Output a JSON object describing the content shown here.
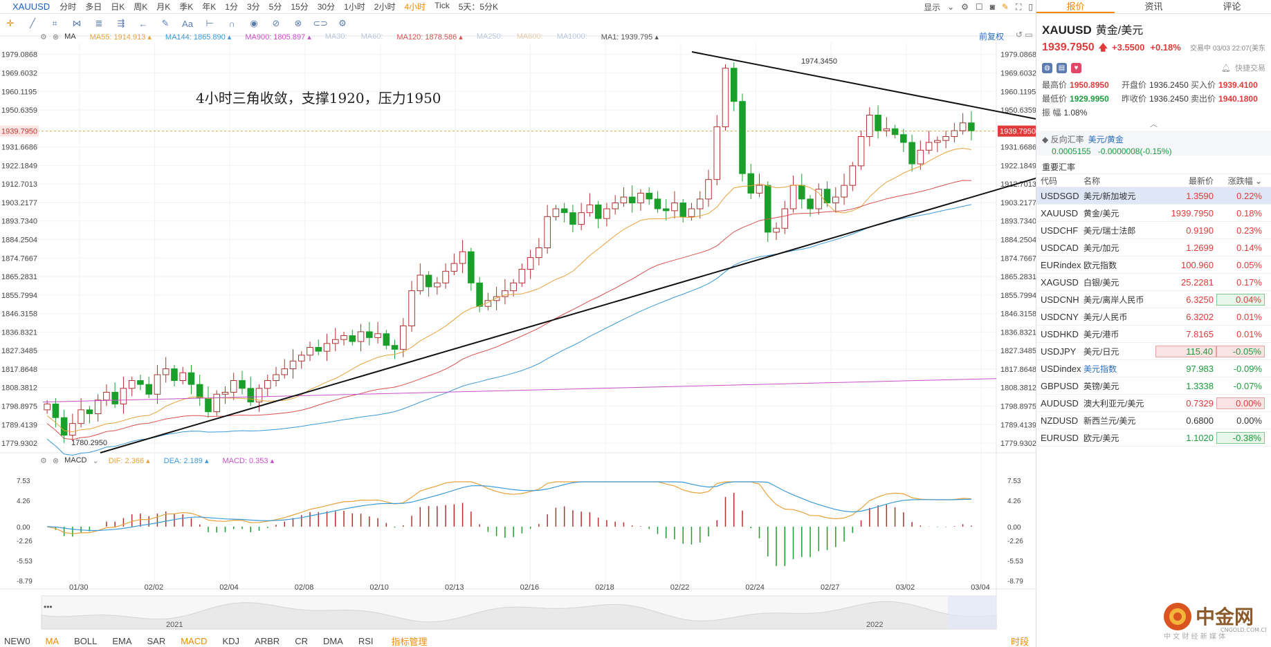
{
  "symbol": "XAUUSD",
  "periods": [
    "分时",
    "多日",
    "日K",
    "周K",
    "月K",
    "季K",
    "年K",
    "1分",
    "3分",
    "5分",
    "15分",
    "30分",
    "1小时",
    "2小时",
    "4小时",
    "Tick",
    "5天：5分K"
  ],
  "active_period": "4小时",
  "top_right": {
    "display": "显示"
  },
  "toolbar_icons": [
    "crosshair-icon",
    "line-tool-icon",
    "measure-icon",
    "pattern-icon",
    "fib-icon",
    "channel-icon",
    "arrow-icon",
    "pencil-icon",
    "text-tool-icon",
    "ruler-icon",
    "magnet-icon",
    "eye-icon",
    "lock-icon",
    "delete-icon",
    "link-icon",
    "settings-icon"
  ],
  "toolbar_text": {
    "aa": "Aa"
  },
  "main_legend": {
    "type": "MA",
    "items": [
      {
        "label": "MA55: 1914.913",
        "color": "#e8a23a"
      },
      {
        "label": "MA144: 1865.890",
        "color": "#3a9ad9"
      },
      {
        "label": "MA900: 1805.897",
        "color": "#c74fc7"
      },
      {
        "label": "MA30:",
        "color": "#b9c6df"
      },
      {
        "label": "MA60:",
        "color": "#b9c6df"
      },
      {
        "label": "MA120: 1878.586",
        "color": "#d94f4f"
      },
      {
        "label": "MA250:",
        "color": "#b9c6df"
      },
      {
        "label": "MA600:",
        "color": "#e9c9a9"
      },
      {
        "label": "MA1000:",
        "color": "#b9c6df"
      },
      {
        "label": "MA1: 1939.795",
        "color": "#555555"
      }
    ],
    "restore": "前复权"
  },
  "annotation": "4小时三角收敛，支撑1920，压力1950",
  "high_label": "1974.3450",
  "low_label": "1780.2950",
  "current_price_tag": "1939.7950",
  "y_ticks": [
    "1979.0868",
    "1969.6032",
    "1960.1195",
    "1950.6359",
    "1931.6686",
    "1922.1849",
    "1912.7013",
    "1903.2177",
    "1893.7340",
    "1884.2504",
    "1874.7667",
    "1865.2831",
    "1855.7994",
    "1846.3158",
    "1836.8321",
    "1827.3485",
    "1817.8648",
    "1808.3812",
    "1798.8975",
    "1789.4139",
    "1779.9302"
  ],
  "macd_legend": {
    "type": "MACD",
    "items": [
      {
        "label": "DIF: 2.366",
        "color": "#e8a23a"
      },
      {
        "label": "DEA: 2.189",
        "color": "#3a9ad9"
      },
      {
        "label": "MACD: 0.353",
        "color": "#c74fc7"
      }
    ]
  },
  "macd_ticks": [
    "7.53",
    "4.26",
    "0.00",
    "-2.26",
    "-5.53",
    "-8.79"
  ],
  "x_dates": [
    "01/30",
    "02/02",
    "02/04",
    "02/08",
    "02/10",
    "02/13",
    "02/16",
    "02/18",
    "02/22",
    "02/24",
    "02/27",
    "03/02",
    "03/04"
  ],
  "nav_years": [
    "2021",
    "2022"
  ],
  "indicator_tabs": [
    "NEW0",
    "MA",
    "BOLL",
    "EMA",
    "SAR",
    "MACD",
    "KDJ",
    "ARBR",
    "CR",
    "DMA",
    "RSI"
  ],
  "active_main_indicator": "MA",
  "active_sub_indicator": "MACD",
  "indicator_manage": "指标管理",
  "time_label": "时段",
  "right_tabs": [
    "报价",
    "资讯",
    "评论"
  ],
  "quote": {
    "code": "XAUUSD",
    "name": "黄金/美元",
    "last": "1939.7950",
    "change": "+3.5500",
    "pct": "+0.18%",
    "status": "交易中 03/03 22:07(美东",
    "quick_trade": "快捷交易",
    "stats": [
      {
        "label": "最高价",
        "value": "1950.8950",
        "dir": "up"
      },
      {
        "label": "开盘价",
        "value": "1936.2450",
        "dir": "nu"
      },
      {
        "label": "买入价",
        "value": "1939.4100",
        "dir": "up"
      },
      {
        "label": "最低价",
        "value": "1929.9950",
        "dir": "dn"
      },
      {
        "label": "昨收价",
        "value": "1936.2450",
        "dir": "nu"
      },
      {
        "label": "卖出价",
        "value": "1940.1800",
        "dir": "up"
      },
      {
        "label": "振  幅",
        "value": "1.08%",
        "dir": "nu"
      }
    ],
    "reverse": {
      "label": "反向汇率",
      "pair": "美元/黄金",
      "value": "0.0005155",
      "change": "-0.0000008(-0.15%)"
    }
  },
  "rates_title": "重要汇率",
  "rates_headers": [
    "代码",
    "名称",
    "最新价",
    "涨跌幅"
  ],
  "rates": [
    {
      "code": "USDSGD",
      "name": "美元/新加坡元",
      "last": "1.3590",
      "pct": "0.22%",
      "dir": "up",
      "sel": true
    },
    {
      "code": "XAUUSD",
      "name": "黄金/美元",
      "last": "1939.7950",
      "pct": "0.18%",
      "dir": "up"
    },
    {
      "code": "USDCHF",
      "name": "美元/瑞士法郎",
      "last": "0.9190",
      "pct": "0.23%",
      "dir": "up"
    },
    {
      "code": "USDCAD",
      "name": "美元/加元",
      "last": "1.2699",
      "pct": "0.14%",
      "dir": "up"
    },
    {
      "code": "EURindex",
      "name": "欧元指数",
      "last": "100.960",
      "pct": "0.05%",
      "dir": "up"
    },
    {
      "code": "XAGUSD",
      "name": "白银/美元",
      "last": "25.2281",
      "pct": "0.17%",
      "dir": "up"
    },
    {
      "code": "USDCNH",
      "name": "美元/离岸人民币",
      "last": "6.3250",
      "pct": "0.04%",
      "dir": "up",
      "pctbox": "up"
    },
    {
      "code": "USDCNY",
      "name": "美元/人民币",
      "last": "6.3202",
      "pct": "0.01%",
      "dir": "up"
    },
    {
      "code": "USDHKD",
      "name": "美元/港币",
      "last": "7.8165",
      "pct": "0.01%",
      "dir": "up"
    },
    {
      "code": "USDJPY",
      "name": "美元/日元",
      "last": "115.40",
      "pct": "-0.05%",
      "dir": "dn",
      "lastbox": "dn",
      "pctbox": "dn"
    },
    {
      "code": "USDindex",
      "name": "美元指数",
      "last": "97.983",
      "pct": "-0.09%",
      "dir": "dn",
      "link": true
    },
    {
      "code": "GBPUSD",
      "name": "英镑/美元",
      "last": "1.3338",
      "pct": "-0.07%",
      "dir": "dn"
    },
    {
      "code": "AUDUSD",
      "name": "澳大利亚元/美元",
      "last": "0.7329",
      "pct": "0.00%",
      "dir": "up",
      "pctbox": "dn"
    },
    {
      "code": "NZDUSD",
      "name": "新西兰元/美元",
      "last": "0.6800",
      "pct": "0.00%",
      "dir": "nu"
    },
    {
      "code": "EURUSD",
      "name": "欧元/美元",
      "last": "1.1020",
      "pct": "-0.38%",
      "dir": "dn",
      "pctbox": "up"
    }
  ],
  "logo": {
    "cn": "中金网",
    "url": "CNGOLD.COM.CN",
    "slogan": "中 文 财 经 新 媒 体"
  },
  "chart_data": {
    "type": "candlestick",
    "title": "",
    "ylim": [
      1775,
      1985
    ],
    "series_close": [
      1800,
      1793,
      1784,
      1790,
      1797,
      1795,
      1802,
      1806,
      1800,
      1808,
      1812,
      1810,
      1805,
      1815,
      1818,
      1812,
      1816,
      1810,
      1803,
      1796,
      1805,
      1806,
      1812,
      1808,
      1801,
      1808,
      1812,
      1815,
      1818,
      1822,
      1825,
      1829,
      1827,
      1831,
      1833,
      1835,
      1832,
      1837,
      1834,
      1836,
      1830,
      1828,
      1840,
      1858,
      1866,
      1860,
      1862,
      1868,
      1872,
      1878,
      1862,
      1850,
      1853,
      1855,
      1858,
      1862,
      1869,
      1875,
      1880,
      1896,
      1900,
      1898,
      1892,
      1898,
      1902,
      1895,
      1900,
      1903,
      1906,
      1903,
      1908,
      1905,
      1900,
      1899,
      1903,
      1896,
      1900,
      1905,
      1915,
      1942,
      1972,
      1955,
      1918,
      1908,
      1912,
      1888,
      1890,
      1900,
      1912,
      1905,
      1900,
      1910,
      1903,
      1906,
      1912,
      1922,
      1937,
      1948,
      1940,
      1941,
      1938,
      1934,
      1923,
      1930,
      1934,
      1935,
      1937,
      1940,
      1944,
      1940
    ]
  }
}
